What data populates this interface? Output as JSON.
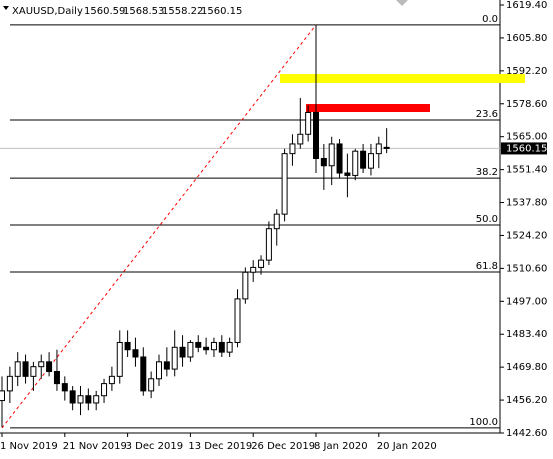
{
  "chart_data": {
    "type": "candlestick",
    "symbol": "XAUUSD,Daily",
    "header_values": [
      1560.59,
      1568.53,
      1558.22,
      1560.15
    ],
    "categories": [
      "1 Nov 2019",
      null,
      null,
      null,
      null,
      null,
      null,
      null,
      "21 Nov 2019",
      null,
      null,
      null,
      null,
      null,
      null,
      null,
      "3 Dec 2019",
      null,
      null,
      null,
      null,
      null,
      null,
      null,
      "13 Dec 2019",
      null,
      null,
      null,
      null,
      null,
      null,
      null,
      "26 Dec 2019",
      null,
      null,
      null,
      null,
      null,
      null,
      null,
      "8 Jan 2020",
      null,
      null,
      null,
      null,
      null,
      null,
      null,
      "20 Jan 2020",
      null
    ],
    "open": [
      1456,
      1460,
      1466,
      1472,
      1466,
      1470,
      1472,
      1468,
      1463,
      1460,
      1455,
      1458,
      1455,
      1458,
      1463,
      1466,
      1480,
      1477,
      1474,
      1460,
      1465,
      1472,
      1469,
      1478,
      1474,
      1480,
      1478,
      1477,
      1480,
      1476,
      1480,
      1498,
      1509,
      1511,
      1514,
      1527,
      1533,
      1558,
      1562,
      1566,
      1575,
      1556,
      1553,
      1562,
      1550,
      1549,
      1559,
      1552,
      1558,
      1560.59
    ],
    "high": [
      1466,
      1470,
      1476,
      1475,
      1472,
      1475,
      1476,
      1477,
      1466,
      1462,
      1462,
      1461,
      1460,
      1465,
      1470,
      1485,
      1485,
      1482,
      1478,
      1468,
      1475,
      1478,
      1485,
      1483,
      1481,
      1483,
      1482,
      1482,
      1483,
      1482,
      1502,
      1511,
      1514,
      1516,
      1530,
      1535,
      1560,
      1566,
      1581,
      1578,
      1611.2,
      1562,
      1565,
      1564,
      1558,
      1560,
      1562,
      1562,
      1565,
      1568.53
    ],
    "low": [
      1445,
      1455,
      1462,
      1463,
      1460,
      1465,
      1466,
      1460,
      1456,
      1452,
      1450,
      1452,
      1452,
      1455,
      1460,
      1463,
      1474,
      1470,
      1458,
      1457,
      1462,
      1466,
      1466,
      1470,
      1472,
      1476,
      1475,
      1474,
      1474,
      1474,
      1478,
      1496,
      1505,
      1508,
      1512,
      1520,
      1530,
      1553,
      1560,
      1563,
      1550,
      1543,
      1545,
      1548,
      1540,
      1547,
      1550,
      1549,
      1552,
      1558.22
    ],
    "close": [
      1460,
      1466,
      1472,
      1466,
      1470,
      1472,
      1468,
      1463,
      1460,
      1455,
      1458,
      1455,
      1458,
      1463,
      1466,
      1480,
      1477,
      1474,
      1460,
      1465,
      1472,
      1469,
      1478,
      1474,
      1480,
      1478,
      1477,
      1480,
      1476,
      1480,
      1498,
      1509,
      1511,
      1514,
      1527,
      1533,
      1558,
      1562,
      1566,
      1575,
      1556,
      1553,
      1562,
      1550,
      1549,
      1559,
      1552,
      1558,
      1562,
      1560.15
    ],
    "bull_color": "#ffffff",
    "bear_color": "#000000",
    "ylim": [
      1442.6,
      1619.4
    ],
    "yticks": [
      {
        "value": 1619.4,
        "label": "1619.40"
      },
      {
        "value": 1605.8,
        "label": "1605.80"
      },
      {
        "value": 1592.2,
        "label": "1592.20"
      },
      {
        "value": 1578.6,
        "label": "1578.60"
      },
      {
        "value": 1565,
        "label": "1565.00"
      },
      {
        "value": 1551.4,
        "label": "1551.40"
      },
      {
        "value": 1537.8,
        "label": "1537.80"
      },
      {
        "value": 1524.2,
        "label": "1524.20"
      },
      {
        "value": 1510.6,
        "label": "1510.60"
      },
      {
        "value": 1497,
        "label": "1497.00"
      },
      {
        "value": 1483.4,
        "label": "1483.40"
      },
      {
        "value": 1469.8,
        "label": "1469.80"
      },
      {
        "value": 1456.2,
        "label": "1456.20"
      },
      {
        "value": 1442.6,
        "label": "1442.60"
      }
    ],
    "current_price": 1560.15,
    "fibonacci": {
      "color": "#000000",
      "levels": [
        {
          "label": "0.0",
          "price": 1611.2
        },
        {
          "label": "23.6",
          "price": 1571.9
        },
        {
          "label": "38.2",
          "price": 1547.9
        },
        {
          "label": "50.0",
          "price": 1528.5
        },
        {
          "label": "61.8",
          "price": 1509.1
        },
        {
          "label": "100.0",
          "price": 1444.7
        }
      ]
    },
    "trend_line": {
      "color": "#ff0000"
    },
    "zones": [
      {
        "color": "#ffff00",
        "top": 1590.9,
        "bottom": 1587.2
      },
      {
        "color": "#ff0000",
        "top": 1578.5,
        "bottom": 1575.2
      }
    ]
  }
}
